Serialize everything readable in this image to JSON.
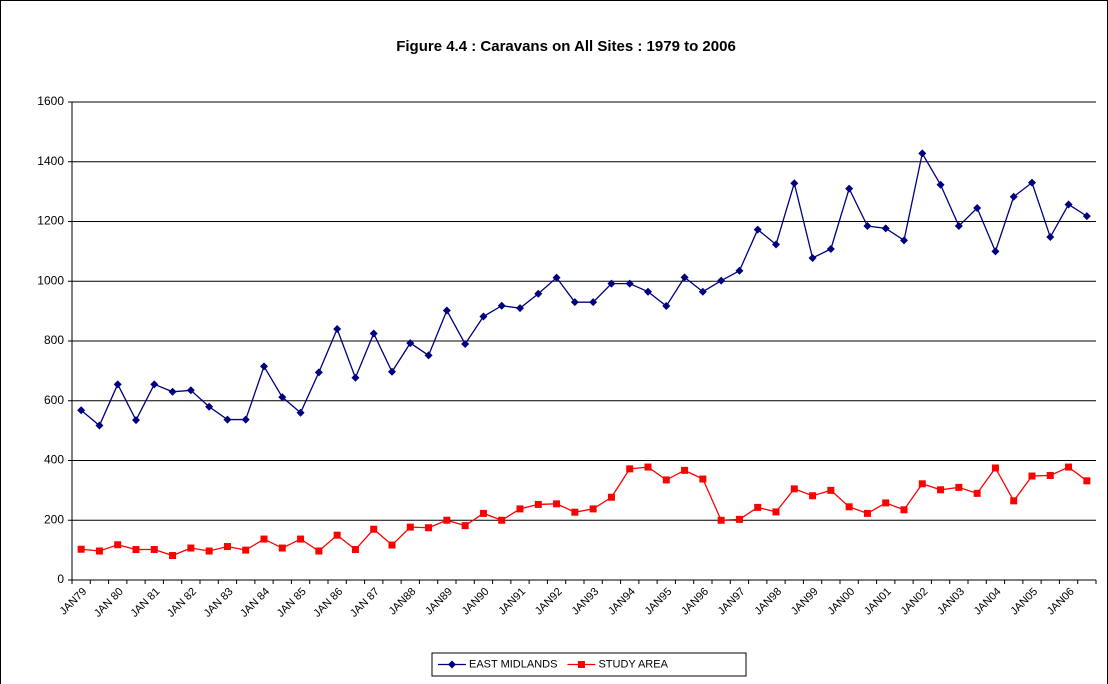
{
  "chart_data": {
    "type": "line",
    "title": "Figure 4.4 : Caravans on All Sites : 1979 to 2006",
    "categories": [
      "JAN79",
      null,
      "JAN 80",
      null,
      "JAN 81",
      null,
      "JAN 82",
      null,
      "JAN 83",
      null,
      "JAN 84",
      null,
      "JAN 85",
      null,
      "JAN 86",
      null,
      "JAN 87",
      null,
      "JAN88",
      null,
      "JAN89",
      null,
      "JAN90",
      null,
      "JAN91",
      null,
      "JAN92",
      null,
      "JAN93",
      null,
      "JAN94",
      null,
      "JAN95",
      null,
      "JAN96",
      null,
      "JAN97",
      null,
      "JAN98",
      null,
      "JAN99",
      null,
      "JAN00",
      null,
      "JAN01",
      null,
      "JAN02",
      null,
      "JAN03",
      null,
      "JAN04",
      null,
      "JAN05",
      null,
      "JAN06",
      null
    ],
    "series": [
      {
        "name": "EAST MIDLANDS",
        "color": "#000080",
        "marker": "diamond",
        "values": [
          568,
          517,
          655,
          535,
          655,
          630,
          635,
          580,
          537,
          537,
          715,
          612,
          560,
          695,
          840,
          677,
          825,
          697,
          793,
          752,
          902,
          790,
          882,
          918,
          910,
          958,
          1012,
          930,
          930,
          992,
          992,
          965,
          917,
          1013,
          965,
          1002,
          1035,
          1173,
          1123,
          1328,
          1078,
          1108,
          1310,
          1185,
          1177,
          1137,
          1428,
          1323,
          1185,
          1245,
          1100,
          1283,
          1330,
          1148,
          1257,
          1218
        ]
      },
      {
        "name": "STUDY AREA",
        "color": "#ff0000",
        "marker": "square",
        "values": [
          103,
          97,
          118,
          102,
          102,
          82,
          107,
          97,
          112,
          100,
          137,
          107,
          137,
          97,
          150,
          102,
          170,
          117,
          177,
          175,
          200,
          182,
          223,
          200,
          238,
          253,
          255,
          227,
          238,
          277,
          372,
          378,
          335,
          367,
          338,
          200,
          203,
          243,
          228,
          305,
          282,
          300,
          245,
          223,
          258,
          235,
          322,
          302,
          310,
          290,
          375,
          265,
          348,
          350,
          378,
          332
        ]
      }
    ],
    "ylim": [
      0,
      1600
    ],
    "yticks": [
      0,
      200,
      400,
      600,
      800,
      1000,
      1200,
      1400,
      1600
    ],
    "grid": true,
    "legend": "bottom"
  }
}
